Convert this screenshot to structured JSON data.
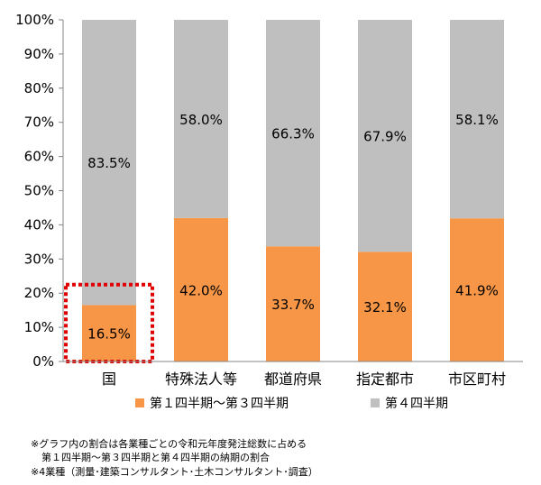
{
  "chart_data": {
    "type": "bar",
    "stacked": true,
    "categories": [
      "国",
      "特殊法人等",
      "都道府県",
      "指定都市",
      "市区町村"
    ],
    "series": [
      {
        "name": "第１四半期～第３四半期",
        "values": [
          16.5,
          42.0,
          33.7,
          32.1,
          41.9
        ],
        "labels": [
          "16.5%",
          "42.0%",
          "33.7%",
          "32.1%",
          "41.9%"
        ],
        "color": "#F79646"
      },
      {
        "name": "第４四半期",
        "values": [
          83.5,
          58.0,
          66.3,
          67.9,
          58.1
        ],
        "labels": [
          "83.5%",
          "58.0%",
          "66.3%",
          "67.9%",
          "58.1%"
        ],
        "color": "#BFBFBF"
      }
    ],
    "yticks": [
      "0%",
      "10%",
      "20%",
      "30%",
      "40%",
      "50%",
      "60%",
      "70%",
      "80%",
      "90%",
      "100%"
    ],
    "ylim": [
      0,
      100
    ],
    "grid": false,
    "legend_position": "bottom",
    "highlight": {
      "category": "国",
      "style": "dotted",
      "color": "#E00000"
    }
  },
  "notes": {
    "line1": "※グラフ内の割合は各業種ごとの令和元年度発注総数に占める",
    "line2": "第１四半期～第３四半期と第４四半期の納期の割合",
    "line3": "※4業種（測量･建築コンサルタント･土木コンサルタント･調査）"
  }
}
